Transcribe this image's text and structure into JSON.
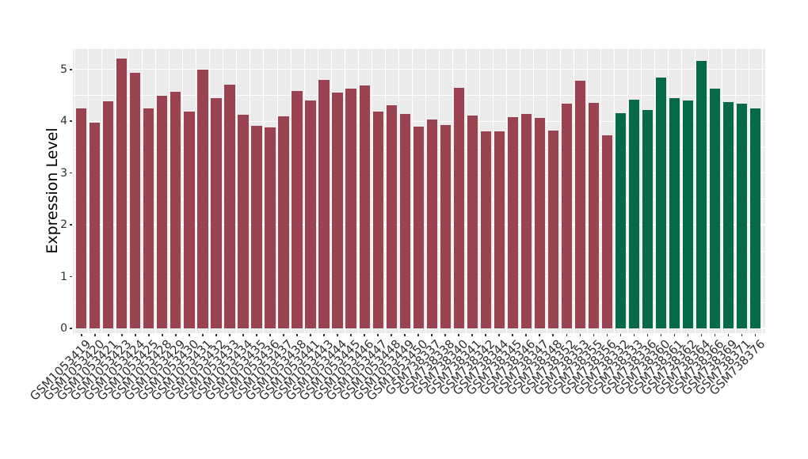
{
  "chart_data": {
    "type": "bar",
    "title": "",
    "xlabel": "",
    "ylabel": "Expression Level",
    "ylim": [
      0,
      5.4
    ],
    "yticks": [
      0,
      1,
      2,
      3,
      4,
      5
    ],
    "legend_position": "none",
    "grid": "gray panel with white major/minor horizontal gridlines and white vertical lines between bars",
    "categories": [
      "GSM1053419",
      "GSM1053420",
      "GSM1053421",
      "GSM1053423",
      "GSM1053424",
      "GSM1053425",
      "GSM1053428",
      "GSM1053429",
      "GSM1053430",
      "GSM1053431",
      "GSM1053432",
      "GSM1053433",
      "GSM1053434",
      "GSM1053435",
      "GSM1053436",
      "GSM1053437",
      "GSM1053438",
      "GSM1053441",
      "GSM1053443",
      "GSM1053444",
      "GSM1053445",
      "GSM1053446",
      "GSM1053447",
      "GSM1053448",
      "GSM1053449",
      "GSM1053450",
      "GSM738337",
      "GSM738338",
      "GSM738340",
      "GSM738341",
      "GSM738342",
      "GSM738344",
      "GSM738345",
      "GSM738346",
      "GSM738347",
      "GSM738348",
      "GSM738352",
      "GSM738353",
      "GSM738355",
      "GSM738356",
      "GSM738332",
      "GSM738333",
      "GSM738336",
      "GSM738360",
      "GSM738361",
      "GSM738362",
      "GSM738364",
      "GSM738366",
      "GSM738369",
      "GSM738371",
      "GSM738376"
    ],
    "values": [
      4.25,
      3.98,
      4.39,
      5.21,
      4.94,
      4.25,
      4.49,
      4.57,
      4.18,
      5.0,
      4.44,
      4.71,
      4.13,
      3.91,
      3.88,
      4.1,
      4.58,
      4.4,
      4.8,
      4.55,
      4.63,
      4.69,
      4.18,
      4.31,
      4.14,
      3.9,
      4.03,
      3.93,
      4.64,
      4.11,
      3.8,
      3.8,
      4.08,
      4.14,
      4.06,
      3.82,
      4.34,
      4.78,
      4.35,
      3.73,
      4.16,
      4.41,
      4.21,
      4.85,
      4.45,
      4.4,
      5.16,
      4.63,
      4.37,
      4.34,
      4.24
    ],
    "series": [
      {
        "name": "group-1-maroon",
        "color": "#9C4352",
        "from_index": 0,
        "to_index": 39
      },
      {
        "name": "group-2-green",
        "color": "#06694A",
        "from_index": 40,
        "to_index": 50
      }
    ]
  },
  "colors": {
    "panel_background": "#EBEBEB",
    "gridline": "#FFFFFF",
    "tick_text": "#303030",
    "axis_title": "#000000",
    "figure_background": "#FFFFFF"
  }
}
